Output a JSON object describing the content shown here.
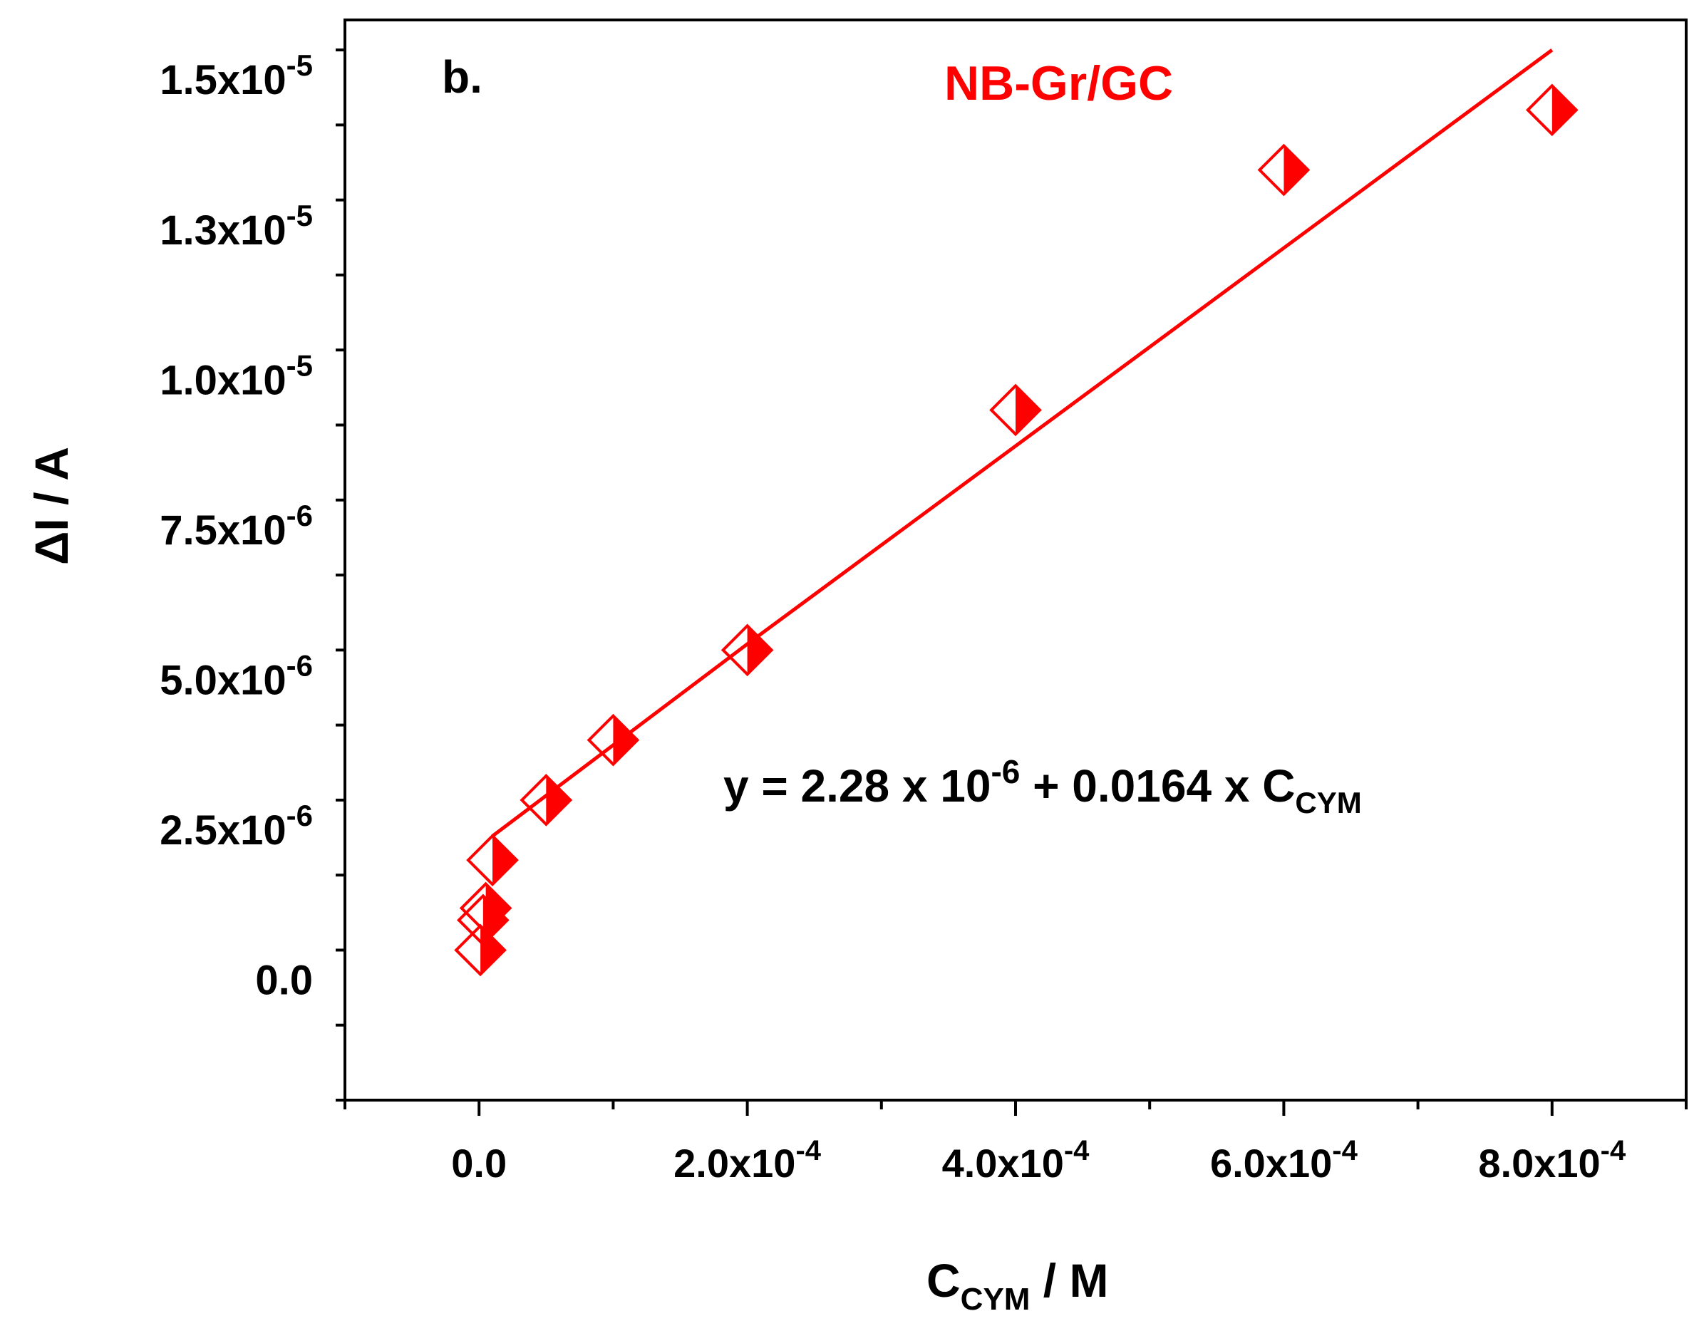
{
  "chart_data": {
    "type": "scatter",
    "panel_label": "b.",
    "legend_label": "NB-Gr/GC",
    "xlabel": {
      "main": "C",
      "sub": "CYM",
      "rest": " / M"
    },
    "ylabel": "ΔI / A",
    "xlim": [
      -0.0001,
      0.0009
    ],
    "ylim": [
      -2e-06,
      1.6e-05
    ],
    "x_ticks": [
      {
        "value": 0,
        "mant": "0.0",
        "exp": ""
      },
      {
        "value": 0.0002,
        "mant": "2.0x10",
        "exp": "-4"
      },
      {
        "value": 0.0004,
        "mant": "4.0x10",
        "exp": "-4"
      },
      {
        "value": 0.0006,
        "mant": "6.0x10",
        "exp": "-4"
      },
      {
        "value": 0.0008,
        "mant": "8.0x10",
        "exp": "-4"
      }
    ],
    "y_ticks": [
      {
        "value": 0,
        "mant": "0.0",
        "exp": ""
      },
      {
        "value": 2.5e-06,
        "mant": "2.5x10",
        "exp": "-6"
      },
      {
        "value": 5e-06,
        "mant": "5.0x10",
        "exp": "-6"
      },
      {
        "value": 7.5e-06,
        "mant": "7.5x10",
        "exp": "-6"
      },
      {
        "value": 1e-05,
        "mant": "1.0x10",
        "exp": "-5"
      },
      {
        "value": 1.25e-05,
        "mant": "1.3x10",
        "exp": "-5"
      },
      {
        "value": 1.5e-05,
        "mant": "1.5x10",
        "exp": "-5"
      }
    ],
    "series": [
      {
        "name": "NB-Gr/GC",
        "color": "#ff0000",
        "marker": "half-filled-diamond",
        "x": [
          1e-06,
          3e-06,
          5e-06,
          1e-05,
          5e-05,
          0.0001,
          0.0002,
          0.0004,
          0.0006,
          0.0008
        ],
        "y": [
          5e-07,
          1e-06,
          1.2e-06,
          2e-06,
          3e-06,
          4e-06,
          5.5e-06,
          9.5e-06,
          1.35e-05,
          1.45e-05
        ]
      }
    ],
    "fit_line": {
      "color": "#ff0000",
      "x": [
        1e-05,
        0.0002,
        0.0008
      ],
      "y": [
        2.4e-06,
        5.6e-06,
        1.55e-05
      ]
    },
    "equation": {
      "prefix": "y = 2.28 x 10",
      "exp": "-6",
      "middle": " + 0.0164 x C",
      "sub": "CYM"
    }
  }
}
